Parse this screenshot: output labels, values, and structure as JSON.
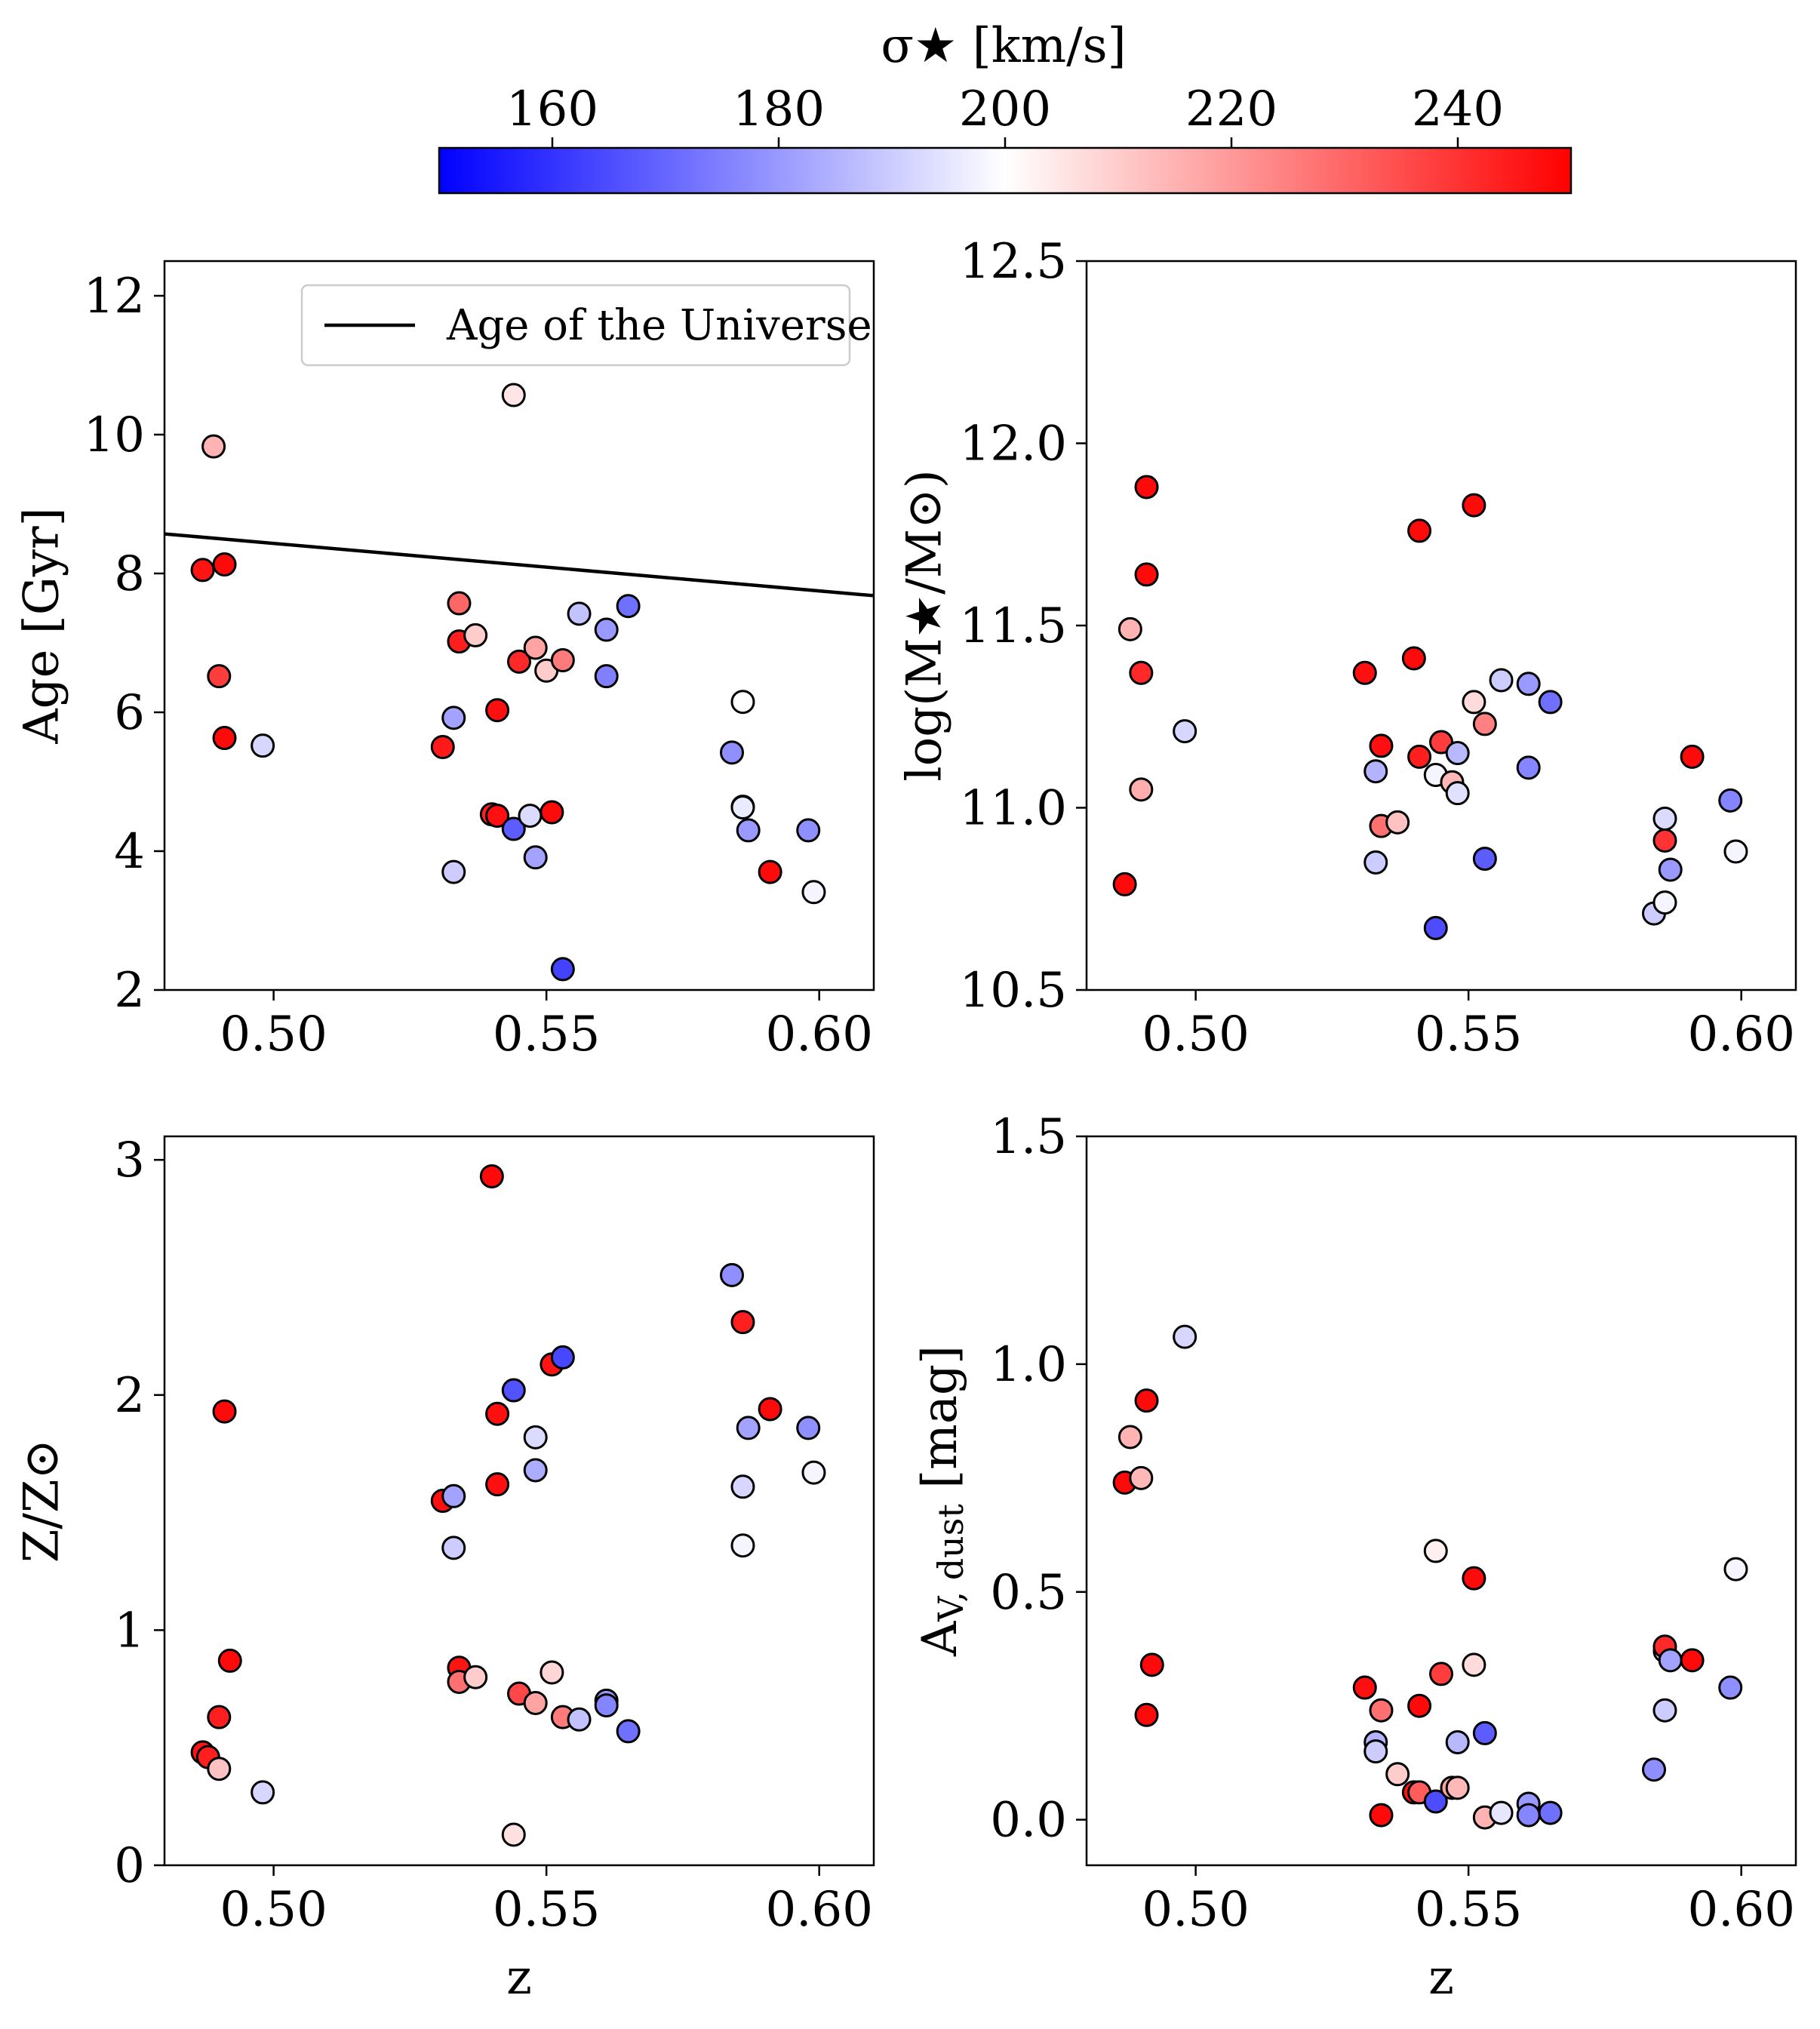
{
  "colorbar": {
    "title": "σ★ [km/s]",
    "min": 150,
    "max": 250,
    "ticks": [
      160,
      180,
      200,
      220,
      240
    ],
    "colormap": "bwr",
    "colors": {
      "low": "#0000ff",
      "mid": "#ffffff",
      "high": "#ff0000"
    }
  },
  "marker_edge_color": "#000000",
  "chart_data": [
    {
      "type": "scatter",
      "id": "age",
      "xlabel": "",
      "ylabel": "Age [Gyr]",
      "xlim": [
        0.48,
        0.61
      ],
      "ylim": [
        2,
        12.5
      ],
      "xticks": [
        0.5,
        0.55,
        0.6
      ],
      "yticks": [
        2,
        4,
        6,
        8,
        10,
        12
      ],
      "grid": false,
      "legend": {
        "position": "top-right",
        "entries": [
          "Age of the Universe"
        ]
      },
      "line": {
        "name": "Age of the Universe",
        "x": [
          0.48,
          0.61
        ],
        "y": [
          8.57,
          7.68
        ],
        "color": "#000000"
      },
      "points": [
        {
          "x": 0.487,
          "y": 8.05,
          "sigma": 246
        },
        {
          "x": 0.489,
          "y": 9.83,
          "sigma": 215
        },
        {
          "x": 0.49,
          "y": 6.52,
          "sigma": 238
        },
        {
          "x": 0.491,
          "y": 8.13,
          "sigma": 248
        },
        {
          "x": 0.491,
          "y": 5.63,
          "sigma": 248
        },
        {
          "x": 0.498,
          "y": 5.52,
          "sigma": 192
        },
        {
          "x": 0.531,
          "y": 5.5,
          "sigma": 245
        },
        {
          "x": 0.533,
          "y": 3.7,
          "sigma": 190
        },
        {
          "x": 0.533,
          "y": 5.92,
          "sigma": 182
        },
        {
          "x": 0.534,
          "y": 7.57,
          "sigma": 230
        },
        {
          "x": 0.534,
          "y": 7.02,
          "sigma": 244
        },
        {
          "x": 0.537,
          "y": 7.11,
          "sigma": 210
        },
        {
          "x": 0.54,
          "y": 4.53,
          "sigma": 244
        },
        {
          "x": 0.541,
          "y": 6.03,
          "sigma": 247
        },
        {
          "x": 0.541,
          "y": 4.51,
          "sigma": 247
        },
        {
          "x": 0.544,
          "y": 10.57,
          "sigma": 205
        },
        {
          "x": 0.544,
          "y": 4.32,
          "sigma": 168
        },
        {
          "x": 0.545,
          "y": 6.73,
          "sigma": 242
        },
        {
          "x": 0.547,
          "y": 4.51,
          "sigma": 193
        },
        {
          "x": 0.548,
          "y": 6.93,
          "sigma": 218
        },
        {
          "x": 0.548,
          "y": 3.91,
          "sigma": 182
        },
        {
          "x": 0.55,
          "y": 6.6,
          "sigma": 210
        },
        {
          "x": 0.551,
          "y": 4.56,
          "sigma": 248
        },
        {
          "x": 0.553,
          "y": 6.75,
          "sigma": 226
        },
        {
          "x": 0.553,
          "y": 2.3,
          "sigma": 163
        },
        {
          "x": 0.556,
          "y": 7.42,
          "sigma": 188
        },
        {
          "x": 0.561,
          "y": 7.19,
          "sigma": 180
        },
        {
          "x": 0.561,
          "y": 6.52,
          "sigma": 175
        },
        {
          "x": 0.565,
          "y": 7.53,
          "sigma": 172
        },
        {
          "x": 0.584,
          "y": 5.42,
          "sigma": 178
        },
        {
          "x": 0.586,
          "y": 6.15,
          "sigma": 200
        },
        {
          "x": 0.586,
          "y": 4.64,
          "sigma": 188
        },
        {
          "x": 0.586,
          "y": 4.63,
          "sigma": 196
        },
        {
          "x": 0.587,
          "y": 4.3,
          "sigma": 180
        },
        {
          "x": 0.591,
          "y": 3.7,
          "sigma": 248
        },
        {
          "x": 0.598,
          "y": 4.3,
          "sigma": 178
        },
        {
          "x": 0.599,
          "y": 3.41,
          "sigma": 198
        }
      ]
    },
    {
      "type": "scatter",
      "id": "mass",
      "xlabel": "",
      "ylabel": "log(M★/M⊙)",
      "xlim": [
        0.48,
        0.61
      ],
      "ylim": [
        10.5,
        12.5
      ],
      "xticks": [
        0.5,
        0.55,
        0.6
      ],
      "yticks": [
        10.5,
        11.0,
        11.5,
        12.0,
        12.5
      ],
      "ytick_labels": [
        "10.5",
        "11.0",
        "11.5",
        "12.0",
        "12.5"
      ],
      "grid": false,
      "points": [
        {
          "x": 0.487,
          "y": 10.79,
          "sigma": 248
        },
        {
          "x": 0.488,
          "y": 11.49,
          "sigma": 215
        },
        {
          "x": 0.49,
          "y": 11.05,
          "sigma": 216
        },
        {
          "x": 0.49,
          "y": 11.37,
          "sigma": 242
        },
        {
          "x": 0.491,
          "y": 11.64,
          "sigma": 248
        },
        {
          "x": 0.491,
          "y": 11.88,
          "sigma": 248
        },
        {
          "x": 0.498,
          "y": 11.21,
          "sigma": 192
        },
        {
          "x": 0.531,
          "y": 11.37,
          "sigma": 247
        },
        {
          "x": 0.533,
          "y": 11.1,
          "sigma": 185
        },
        {
          "x": 0.533,
          "y": 10.85,
          "sigma": 190
        },
        {
          "x": 0.534,
          "y": 11.17,
          "sigma": 247
        },
        {
          "x": 0.534,
          "y": 10.95,
          "sigma": 228
        },
        {
          "x": 0.537,
          "y": 10.96,
          "sigma": 212
        },
        {
          "x": 0.54,
          "y": 11.41,
          "sigma": 248
        },
        {
          "x": 0.541,
          "y": 11.76,
          "sigma": 248
        },
        {
          "x": 0.541,
          "y": 11.14,
          "sigma": 244
        },
        {
          "x": 0.544,
          "y": 11.09,
          "sigma": 198
        },
        {
          "x": 0.544,
          "y": 10.67,
          "sigma": 165
        },
        {
          "x": 0.545,
          "y": 11.18,
          "sigma": 238
        },
        {
          "x": 0.547,
          "y": 11.07,
          "sigma": 214
        },
        {
          "x": 0.548,
          "y": 11.15,
          "sigma": 186
        },
        {
          "x": 0.548,
          "y": 11.04,
          "sigma": 194
        },
        {
          "x": 0.551,
          "y": 11.83,
          "sigma": 248
        },
        {
          "x": 0.551,
          "y": 11.29,
          "sigma": 207
        },
        {
          "x": 0.553,
          "y": 11.23,
          "sigma": 225
        },
        {
          "x": 0.553,
          "y": 10.86,
          "sigma": 168
        },
        {
          "x": 0.556,
          "y": 11.35,
          "sigma": 190
        },
        {
          "x": 0.561,
          "y": 11.34,
          "sigma": 180
        },
        {
          "x": 0.561,
          "y": 11.11,
          "sigma": 176
        },
        {
          "x": 0.565,
          "y": 11.29,
          "sigma": 172
        },
        {
          "x": 0.584,
          "y": 10.71,
          "sigma": 190
        },
        {
          "x": 0.586,
          "y": 10.97,
          "sigma": 193
        },
        {
          "x": 0.586,
          "y": 10.74,
          "sigma": 198
        },
        {
          "x": 0.586,
          "y": 10.91,
          "sigma": 240
        },
        {
          "x": 0.587,
          "y": 10.83,
          "sigma": 180
        },
        {
          "x": 0.591,
          "y": 11.14,
          "sigma": 248
        },
        {
          "x": 0.598,
          "y": 11.02,
          "sigma": 176
        },
        {
          "x": 0.599,
          "y": 10.88,
          "sigma": 198
        }
      ]
    },
    {
      "type": "scatter",
      "id": "metallicity",
      "xlabel": "z",
      "ylabel": "Z/Z⊙",
      "xlim": [
        0.48,
        0.61
      ],
      "ylim": [
        0,
        3.1
      ],
      "xticks": [
        0.5,
        0.55,
        0.6
      ],
      "yticks": [
        0,
        1,
        2,
        3
      ],
      "grid": false,
      "points": [
        {
          "x": 0.487,
          "y": 0.48,
          "sigma": 246
        },
        {
          "x": 0.488,
          "y": 0.46,
          "sigma": 244
        },
        {
          "x": 0.49,
          "y": 0.41,
          "sigma": 212
        },
        {
          "x": 0.49,
          "y": 0.63,
          "sigma": 244
        },
        {
          "x": 0.491,
          "y": 1.93,
          "sigma": 248
        },
        {
          "x": 0.492,
          "y": 0.87,
          "sigma": 248
        },
        {
          "x": 0.498,
          "y": 0.31,
          "sigma": 192
        },
        {
          "x": 0.531,
          "y": 1.55,
          "sigma": 247
        },
        {
          "x": 0.533,
          "y": 1.57,
          "sigma": 182
        },
        {
          "x": 0.533,
          "y": 1.35,
          "sigma": 190
        },
        {
          "x": 0.534,
          "y": 0.84,
          "sigma": 246
        },
        {
          "x": 0.534,
          "y": 0.78,
          "sigma": 228
        },
        {
          "x": 0.537,
          "y": 0.8,
          "sigma": 210
        },
        {
          "x": 0.54,
          "y": 2.93,
          "sigma": 248
        },
        {
          "x": 0.541,
          "y": 1.92,
          "sigma": 247
        },
        {
          "x": 0.541,
          "y": 1.62,
          "sigma": 247
        },
        {
          "x": 0.544,
          "y": 0.13,
          "sigma": 206
        },
        {
          "x": 0.544,
          "y": 2.02,
          "sigma": 166
        },
        {
          "x": 0.545,
          "y": 0.73,
          "sigma": 236
        },
        {
          "x": 0.548,
          "y": 1.82,
          "sigma": 193
        },
        {
          "x": 0.548,
          "y": 1.68,
          "sigma": 184
        },
        {
          "x": 0.548,
          "y": 0.69,
          "sigma": 218
        },
        {
          "x": 0.551,
          "y": 0.82,
          "sigma": 208
        },
        {
          "x": 0.551,
          "y": 2.13,
          "sigma": 246
        },
        {
          "x": 0.553,
          "y": 0.63,
          "sigma": 226
        },
        {
          "x": 0.553,
          "y": 2.16,
          "sigma": 164
        },
        {
          "x": 0.556,
          "y": 0.62,
          "sigma": 188
        },
        {
          "x": 0.561,
          "y": 0.7,
          "sigma": 180
        },
        {
          "x": 0.561,
          "y": 0.68,
          "sigma": 176
        },
        {
          "x": 0.565,
          "y": 0.57,
          "sigma": 172
        },
        {
          "x": 0.584,
          "y": 2.51,
          "sigma": 178
        },
        {
          "x": 0.586,
          "y": 1.61,
          "sigma": 192
        },
        {
          "x": 0.586,
          "y": 1.36,
          "sigma": 198
        },
        {
          "x": 0.586,
          "y": 2.31,
          "sigma": 244
        },
        {
          "x": 0.587,
          "y": 1.86,
          "sigma": 182
        },
        {
          "x": 0.591,
          "y": 1.94,
          "sigma": 248
        },
        {
          "x": 0.598,
          "y": 1.86,
          "sigma": 178
        },
        {
          "x": 0.599,
          "y": 1.67,
          "sigma": 198
        }
      ]
    },
    {
      "type": "scatter",
      "id": "dust",
      "xlabel": "z",
      "ylabel": "AV, dust [mag]",
      "ylabel_main": "A",
      "ylabel_sub": "V, dust",
      "ylabel_rest": " [mag]",
      "xlim": [
        0.48,
        0.61
      ],
      "ylim": [
        -0.1,
        1.5
      ],
      "xticks": [
        0.5,
        0.55,
        0.6
      ],
      "yticks": [
        0.0,
        0.5,
        1.0,
        1.5
      ],
      "ytick_labels": [
        "0.0",
        "0.5",
        "1.0",
        "1.5"
      ],
      "grid": false,
      "points": [
        {
          "x": 0.487,
          "y": 0.74,
          "sigma": 248
        },
        {
          "x": 0.488,
          "y": 0.84,
          "sigma": 215
        },
        {
          "x": 0.49,
          "y": 0.75,
          "sigma": 214
        },
        {
          "x": 0.491,
          "y": 0.92,
          "sigma": 248
        },
        {
          "x": 0.491,
          "y": 0.23,
          "sigma": 248
        },
        {
          "x": 0.492,
          "y": 0.34,
          "sigma": 248
        },
        {
          "x": 0.498,
          "y": 1.06,
          "sigma": 192
        },
        {
          "x": 0.531,
          "y": 0.29,
          "sigma": 247
        },
        {
          "x": 0.533,
          "y": 0.17,
          "sigma": 185
        },
        {
          "x": 0.533,
          "y": 0.15,
          "sigma": 190
        },
        {
          "x": 0.534,
          "y": 0.24,
          "sigma": 228
        },
        {
          "x": 0.534,
          "y": 0.01,
          "sigma": 248
        },
        {
          "x": 0.537,
          "y": 0.1,
          "sigma": 210
        },
        {
          "x": 0.54,
          "y": 0.06,
          "sigma": 246
        },
        {
          "x": 0.541,
          "y": 0.25,
          "sigma": 248
        },
        {
          "x": 0.541,
          "y": 0.06,
          "sigma": 232
        },
        {
          "x": 0.544,
          "y": 0.59,
          "sigma": 203
        },
        {
          "x": 0.544,
          "y": 0.04,
          "sigma": 165
        },
        {
          "x": 0.545,
          "y": 0.32,
          "sigma": 238
        },
        {
          "x": 0.547,
          "y": 0.07,
          "sigma": 218
        },
        {
          "x": 0.548,
          "y": 0.07,
          "sigma": 214
        },
        {
          "x": 0.548,
          "y": 0.17,
          "sigma": 186
        },
        {
          "x": 0.551,
          "y": 0.53,
          "sigma": 248
        },
        {
          "x": 0.551,
          "y": 0.34,
          "sigma": 207
        },
        {
          "x": 0.553,
          "y": 0.005,
          "sigma": 215
        },
        {
          "x": 0.553,
          "y": 0.19,
          "sigma": 168
        },
        {
          "x": 0.556,
          "y": 0.015,
          "sigma": 195
        },
        {
          "x": 0.561,
          "y": 0.035,
          "sigma": 180
        },
        {
          "x": 0.561,
          "y": 0.01,
          "sigma": 176
        },
        {
          "x": 0.565,
          "y": 0.015,
          "sigma": 172
        },
        {
          "x": 0.584,
          "y": 0.11,
          "sigma": 178
        },
        {
          "x": 0.586,
          "y": 0.24,
          "sigma": 190
        },
        {
          "x": 0.586,
          "y": 0.37,
          "sigma": 196
        },
        {
          "x": 0.586,
          "y": 0.38,
          "sigma": 242
        },
        {
          "x": 0.587,
          "y": 0.35,
          "sigma": 182
        },
        {
          "x": 0.591,
          "y": 0.35,
          "sigma": 248
        },
        {
          "x": 0.598,
          "y": 0.29,
          "sigma": 178
        },
        {
          "x": 0.599,
          "y": 0.55,
          "sigma": 198
        }
      ]
    }
  ]
}
